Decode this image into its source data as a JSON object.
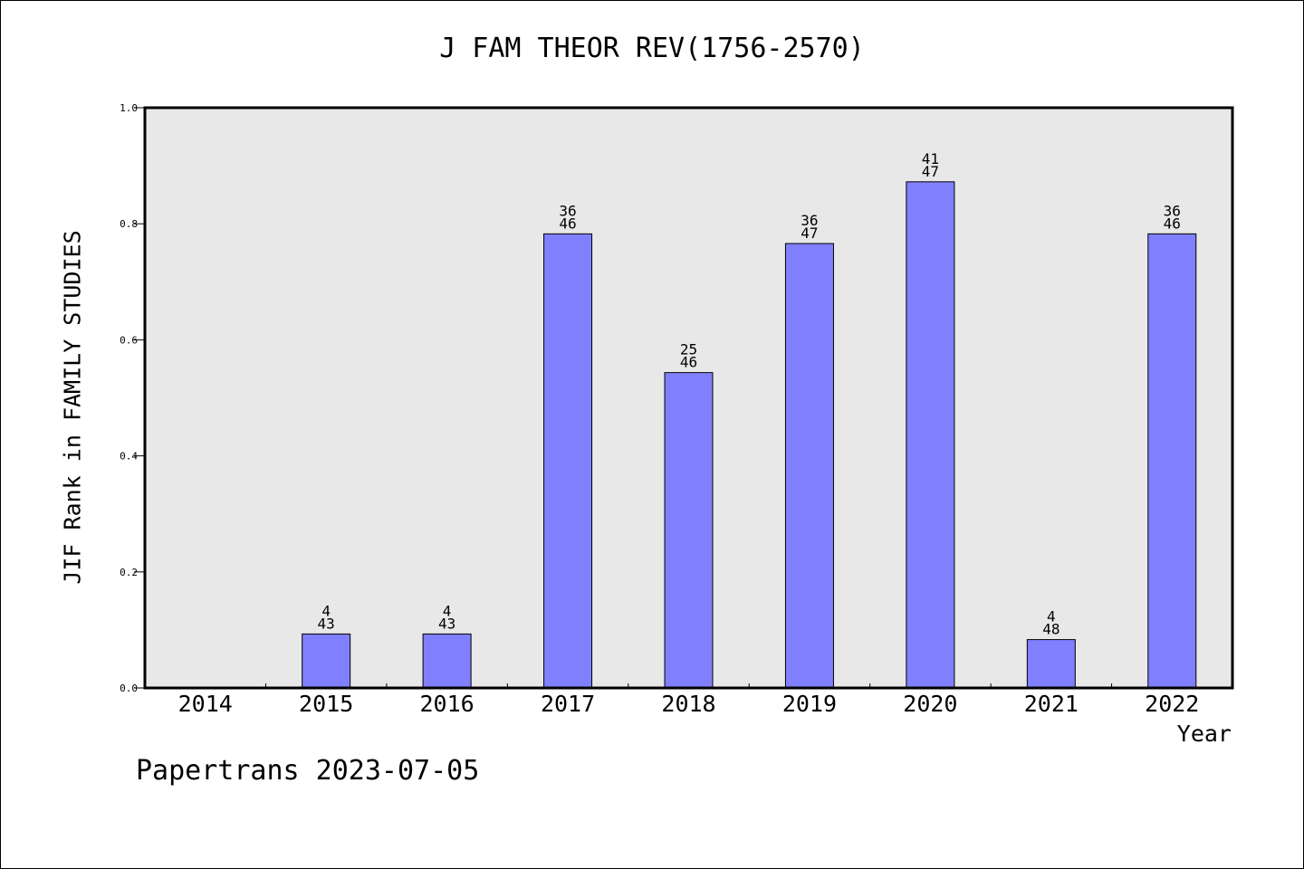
{
  "chart_data": {
    "type": "bar",
    "title": "J FAM THEOR REV(1756-2570)",
    "xlabel": "Year",
    "ylabel": "JIF Rank in FAMILY STUDIES",
    "ylim": [
      0,
      1.0
    ],
    "yticks": [
      "0.0",
      "0.2",
      "0.4",
      "0.6",
      "0.8",
      "1.0"
    ],
    "categories": [
      "2014",
      "2015",
      "2016",
      "2017",
      "2018",
      "2019",
      "2020",
      "2021",
      "2022"
    ],
    "values": [
      null,
      0.093,
      0.093,
      0.783,
      0.543,
      0.766,
      0.872,
      0.083,
      0.783
    ],
    "bar_labels": [
      null,
      {
        "rank": "4",
        "total": "43"
      },
      {
        "rank": "4",
        "total": "43"
      },
      {
        "rank": "36",
        "total": "46"
      },
      {
        "rank": "25",
        "total": "46"
      },
      {
        "rank": "36",
        "total": "47"
      },
      {
        "rank": "41",
        "total": "47"
      },
      {
        "rank": "4",
        "total": "48"
      },
      {
        "rank": "36",
        "total": "46"
      }
    ],
    "bar_color": "#8080ff",
    "plot_background": "#e8e8e8",
    "grid": false,
    "legend": "none"
  },
  "footer": "Papertrans 2023-07-05"
}
